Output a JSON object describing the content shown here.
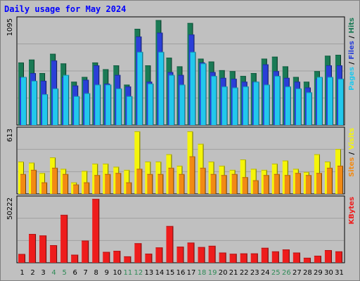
{
  "title": "Daily usage for May 2024",
  "colors": {
    "hits": "#1a7a55",
    "files": "#2a3fd8",
    "pages": "#22c8ec",
    "visits": "#f5f50a",
    "sites": "#f28a14",
    "kbytes": "#ee1c1c",
    "weekend_day_label": "#2e8b57",
    "weekday_label": "#000000"
  },
  "legends": {
    "top": [
      {
        "text": "Pages",
        "color": "#22c8ec"
      },
      {
        "text": " / ",
        "color": "#000000"
      },
      {
        "text": "Files",
        "color": "#2a3fd8"
      },
      {
        "text": " / ",
        "color": "#000000"
      },
      {
        "text": "Hits",
        "color": "#1a7a55"
      }
    ],
    "middle": [
      {
        "text": "Sites",
        "color": "#f28a14"
      },
      {
        "text": " / ",
        "color": "#000000"
      },
      {
        "text": "Visits",
        "color": "#f5f50a"
      }
    ],
    "bottom": [
      {
        "text": "KBytes",
        "color": "#ee1c1c"
      }
    ]
  },
  "chart_data": [
    {
      "type": "bar",
      "panel": "top",
      "y_max_label": "1095",
      "ylim": [
        0,
        1095
      ],
      "categories": [
        "1",
        "2",
        "3",
        "4",
        "5",
        "6",
        "7",
        "8",
        "9",
        "10",
        "11",
        "12",
        "13",
        "14",
        "15",
        "16",
        "17",
        "18",
        "19",
        "20",
        "21",
        "22",
        "23",
        "24",
        "25",
        "26",
        "27",
        "28",
        "29",
        "30",
        "31"
      ],
      "series": [
        {
          "name": "Hits",
          "values": [
            650,
            680,
            540,
            740,
            640,
            450,
            500,
            650,
            580,
            620,
            420,
            1000,
            620,
            1090,
            700,
            610,
            1060,
            690,
            660,
            570,
            560,
            510,
            540,
            690,
            710,
            610,
            500,
            450,
            560,
            720,
            730
          ]
        },
        {
          "name": "Files",
          "values": [
            500,
            540,
            460,
            670,
            500,
            410,
            470,
            620,
            430,
            520,
            400,
            920,
            450,
            960,
            550,
            520,
            940,
            650,
            550,
            490,
            480,
            450,
            450,
            630,
            560,
            490,
            450,
            390,
            480,
            620,
            620
          ]
        },
        {
          "name": "Pages",
          "values": [
            500,
            460,
            320,
            380,
            520,
            300,
            330,
            420,
            420,
            380,
            300,
            760,
            430,
            760,
            520,
            420,
            760,
            640,
            510,
            400,
            390,
            400,
            450,
            420,
            510,
            400,
            380,
            340,
            500,
            500,
            480
          ]
        }
      ]
    },
    {
      "type": "bar",
      "panel": "middle",
      "y_max_label": "613",
      "ylim": [
        0,
        613
      ],
      "categories": [
        "1",
        "2",
        "3",
        "4",
        "5",
        "6",
        "7",
        "8",
        "9",
        "10",
        "11",
        "12",
        "13",
        "14",
        "15",
        "16",
        "17",
        "18",
        "19",
        "20",
        "21",
        "22",
        "23",
        "24",
        "25",
        "26",
        "27",
        "28",
        "29",
        "30",
        "31"
      ],
      "series": [
        {
          "name": "Visits",
          "values": [
            310,
            300,
            200,
            350,
            240,
            110,
            220,
            290,
            290,
            260,
            230,
            600,
            310,
            310,
            380,
            270,
            600,
            480,
            310,
            270,
            230,
            330,
            240,
            230,
            290,
            320,
            240,
            210,
            380,
            310,
            430
          ]
        },
        {
          "name": "Sites",
          "values": [
            190,
            230,
            110,
            250,
            190,
            90,
            110,
            180,
            190,
            200,
            110,
            240,
            190,
            190,
            250,
            190,
            360,
            250,
            190,
            180,
            190,
            160,
            130,
            180,
            190,
            180,
            200,
            180,
            200,
            250,
            270
          ]
        }
      ]
    },
    {
      "type": "bar",
      "panel": "bottom",
      "y_max_label": "50222",
      "ylim": [
        0,
        50222
      ],
      "categories": [
        "1",
        "2",
        "3",
        "4",
        "5",
        "6",
        "7",
        "8",
        "9",
        "10",
        "11",
        "12",
        "13",
        "14",
        "15",
        "16",
        "17",
        "18",
        "19",
        "20",
        "21",
        "22",
        "23",
        "24",
        "25",
        "26",
        "27",
        "28",
        "29",
        "30",
        "31"
      ],
      "series": [
        {
          "name": "KBytes",
          "values": [
            6900,
            22600,
            21400,
            13800,
            37600,
            6300,
            17400,
            50100,
            8500,
            9300,
            5000,
            15300,
            7100,
            12000,
            28800,
            12600,
            15800,
            12300,
            13300,
            8000,
            7000,
            7300,
            7300,
            11700,
            8900,
            10400,
            8000,
            3900,
            5500,
            9900,
            8900
          ]
        }
      ]
    }
  ],
  "weekend_days": [
    "4",
    "5",
    "11",
    "12",
    "18",
    "19",
    "25",
    "26"
  ]
}
